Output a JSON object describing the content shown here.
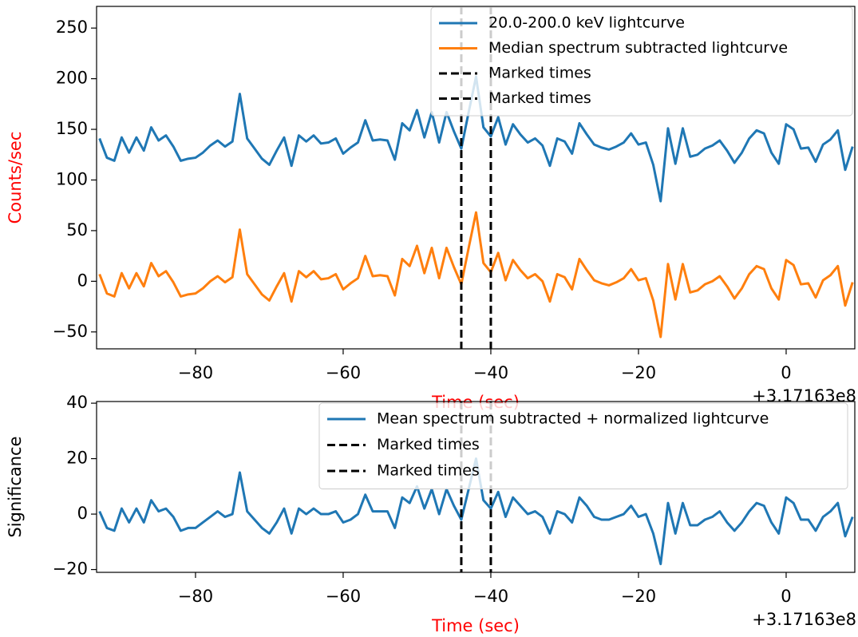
{
  "chart_data": [
    {
      "type": "line",
      "ylabel": "Counts/sec",
      "ylabel_color": "#ff0000",
      "xlabel": "Time (sec)",
      "xlabel_color": "#ff0000",
      "x_offset_label": "+3.17163e8",
      "x": [
        -93,
        -92,
        -91,
        -90,
        -89,
        -88,
        -87,
        -86,
        -85,
        -84,
        -83,
        -82,
        -81,
        -80,
        -79,
        -78,
        -77,
        -76,
        -75,
        -74,
        -73,
        -72,
        -71,
        -70,
        -69,
        -68,
        -67,
        -66,
        -65,
        -64,
        -63,
        -62,
        -61,
        -60,
        -59,
        -58,
        -57,
        -56,
        -55,
        -54,
        -53,
        -52,
        -51,
        -50,
        -49,
        -48,
        -47,
        -46,
        -45,
        -44,
        -43,
        -42,
        -41,
        -40,
        -39,
        -38,
        -37,
        -36,
        -35,
        -34,
        -33,
        -32,
        -31,
        -30,
        -29,
        -28,
        -27,
        -26,
        -25,
        -24,
        -23,
        -22,
        -21,
        -20,
        -19,
        -18,
        -17,
        -16,
        -15,
        -14,
        -13,
        -12,
        -11,
        -10,
        -9,
        -8,
        -7,
        -6,
        -5,
        -4,
        -3,
        -2,
        -1,
        0,
        1,
        2,
        3,
        4,
        5,
        6,
        7,
        8,
        9
      ],
      "series": [
        {
          "name": "20.0-200.0 keV lightcurve",
          "color": "#1f77b4",
          "values": [
            141,
            122,
            119,
            142,
            127,
            142,
            129,
            152,
            139,
            144,
            133,
            119,
            121,
            122,
            127,
            134,
            139,
            133,
            138,
            185,
            141,
            131,
            121,
            115,
            129,
            142,
            114,
            144,
            138,
            144,
            136,
            137,
            141,
            126,
            132,
            137,
            159,
            139,
            140,
            139,
            120,
            156,
            149,
            169,
            142,
            167,
            137,
            167,
            148,
            131,
            167,
            202,
            152,
            143,
            162,
            135,
            155,
            145,
            137,
            141,
            134,
            114,
            141,
            138,
            126,
            156,
            145,
            135,
            132,
            130,
            133,
            137,
            146,
            135,
            137,
            115,
            79,
            151,
            116,
            151,
            123,
            125,
            131,
            134,
            139,
            129,
            117,
            127,
            141,
            149,
            146,
            127,
            116,
            155,
            150,
            131,
            132,
            118,
            135,
            140,
            149,
            110,
            133
          ]
        },
        {
          "name": "Median spectrum subtracted lightcurve",
          "color": "#ff7f0e",
          "values": [
            7,
            -12,
            -15,
            8,
            -7,
            8,
            -5,
            18,
            5,
            10,
            -1,
            -15,
            -13,
            -12,
            -7,
            0,
            5,
            -1,
            4,
            51,
            7,
            -3,
            -13,
            -19,
            -5,
            8,
            -20,
            10,
            4,
            10,
            2,
            3,
            7,
            -8,
            -2,
            3,
            25,
            5,
            6,
            5,
            -14,
            22,
            15,
            35,
            8,
            33,
            3,
            33,
            14,
            -3,
            33,
            68,
            18,
            9,
            28,
            1,
            21,
            11,
            3,
            7,
            0,
            -20,
            7,
            4,
            -8,
            22,
            11,
            1,
            -2,
            -4,
            -1,
            3,
            12,
            1,
            3,
            -19,
            -55,
            17,
            -18,
            17,
            -11,
            -9,
            -3,
            0,
            5,
            -5,
            -17,
            -7,
            7,
            15,
            12,
            -7,
            -18,
            21,
            16,
            -3,
            -2,
            -16,
            1,
            6,
            15,
            -24,
            -1
          ]
        }
      ],
      "vlines": [
        {
          "name": "Marked times",
          "x": -44,
          "color": "#000000"
        },
        {
          "name": "Marked times",
          "x": -40,
          "color": "#000000"
        }
      ],
      "xlim": [
        -93.4,
        9.3
      ],
      "xticks": [
        {
          "value": -80,
          "label": "−80"
        },
        {
          "value": -60,
          "label": "−60"
        },
        {
          "value": -40,
          "label": "−40"
        },
        {
          "value": -20,
          "label": "−20"
        },
        0
      ],
      "ylim": [
        -66.7,
        271.4
      ],
      "yticks": [
        {
          "value": -50,
          "label": "−50"
        },
        0,
        50,
        100,
        150,
        200,
        250
      ],
      "legend": "upper right"
    },
    {
      "type": "line",
      "ylabel": "Significance",
      "ylabel_color": "#000000",
      "xlabel": "Time (sec)",
      "xlabel_color": "#ff0000",
      "x_offset_label": "+3.17163e8",
      "x": [
        -93,
        -92,
        -91,
        -90,
        -89,
        -88,
        -87,
        -86,
        -85,
        -84,
        -83,
        -82,
        -81,
        -80,
        -79,
        -78,
        -77,
        -76,
        -75,
        -74,
        -73,
        -72,
        -71,
        -70,
        -69,
        -68,
        -67,
        -66,
        -65,
        -64,
        -63,
        -62,
        -61,
        -60,
        -59,
        -58,
        -57,
        -56,
        -55,
        -54,
        -53,
        -52,
        -51,
        -50,
        -49,
        -48,
        -47,
        -46,
        -45,
        -44,
        -43,
        -42,
        -41,
        -40,
        -39,
        -38,
        -37,
        -36,
        -35,
        -34,
        -33,
        -32,
        -31,
        -30,
        -29,
        -28,
        -27,
        -26,
        -25,
        -24,
        -23,
        -22,
        -21,
        -20,
        -19,
        -18,
        -17,
        -16,
        -15,
        -14,
        -13,
        -12,
        -11,
        -10,
        -9,
        -8,
        -7,
        -6,
        -5,
        -4,
        -3,
        -2,
        -1,
        0,
        1,
        2,
        3,
        4,
        5,
        6,
        7,
        8,
        9
      ],
      "series": [
        {
          "name": "Mean spectrum subtracted + normalized lightcurve",
          "color": "#1f77b4",
          "values": [
            1,
            -5,
            -6,
            2,
            -3,
            2,
            -3,
            5,
            1,
            2,
            -1,
            -6,
            -5,
            -5,
            -3,
            -1,
            1,
            -1,
            0,
            15,
            1,
            -2,
            -5,
            -7,
            -3,
            2,
            -7,
            2,
            0,
            2,
            0,
            0,
            1,
            -3,
            -2,
            0,
            7,
            1,
            1,
            1,
            -5,
            6,
            4,
            10,
            2,
            9,
            0,
            9,
            3,
            -2,
            9,
            20,
            5,
            2,
            8,
            -1,
            6,
            3,
            0,
            1,
            -1,
            -7,
            1,
            0,
            -3,
            6,
            3,
            -1,
            -2,
            -2,
            -1,
            0,
            3,
            -1,
            0,
            -7,
            -18,
            4,
            -7,
            4,
            -4,
            -4,
            -2,
            -1,
            1,
            -3,
            -6,
            -3,
            1,
            4,
            3,
            -3,
            -7,
            6,
            4,
            -2,
            -2,
            -6,
            -1,
            1,
            4,
            -8,
            -1
          ]
        }
      ],
      "vlines": [
        {
          "name": "Marked times",
          "x": -44,
          "color": "#000000"
        },
        {
          "name": "Marked times",
          "x": -40,
          "color": "#000000"
        }
      ],
      "xlim": [
        -93.4,
        9.3
      ],
      "xticks": [
        {
          "value": -80,
          "label": "−80"
        },
        {
          "value": -60,
          "label": "−60"
        },
        {
          "value": -40,
          "label": "−40"
        },
        {
          "value": -20,
          "label": "−20"
        },
        0
      ],
      "ylim": [
        -21,
        40.6
      ],
      "yticks": [
        {
          "value": -20,
          "label": "−20"
        },
        0,
        20,
        40
      ],
      "legend": "upper right"
    }
  ]
}
